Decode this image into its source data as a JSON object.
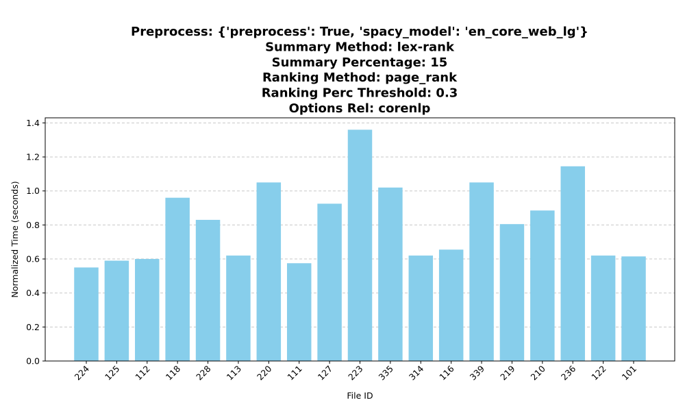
{
  "chart_data": {
    "type": "bar",
    "title_lines": [
      "Preprocess: {'preprocess': True, 'spacy_model': 'en_core_web_lg'}",
      "Summary Method: lex-rank",
      "Summary Percentage: 15",
      "Ranking Method: page_rank",
      "Ranking Perc Threshold: 0.3",
      "Options Rel: corenlp"
    ],
    "xlabel": "File ID",
    "ylabel": "Normalized Time (seconds)",
    "categories": [
      "224",
      "125",
      "112",
      "118",
      "228",
      "113",
      "220",
      "111",
      "127",
      "223",
      "335",
      "314",
      "116",
      "339",
      "219",
      "210",
      "236",
      "122",
      "101"
    ],
    "values": [
      0.55,
      0.59,
      0.6,
      0.96,
      0.83,
      0.62,
      1.05,
      0.575,
      0.925,
      1.36,
      1.02,
      0.62,
      0.655,
      1.05,
      0.805,
      0.885,
      1.145,
      0.62,
      0.615
    ],
    "ylim": [
      0,
      1.43
    ],
    "yticks": [
      "0.0",
      "0.2",
      "0.4",
      "0.6",
      "0.8",
      "1.0",
      "1.2",
      "1.4"
    ],
    "grid": "y-dashed",
    "bar_color": "#87CEEB",
    "grid_color": "#c8c8c8"
  }
}
